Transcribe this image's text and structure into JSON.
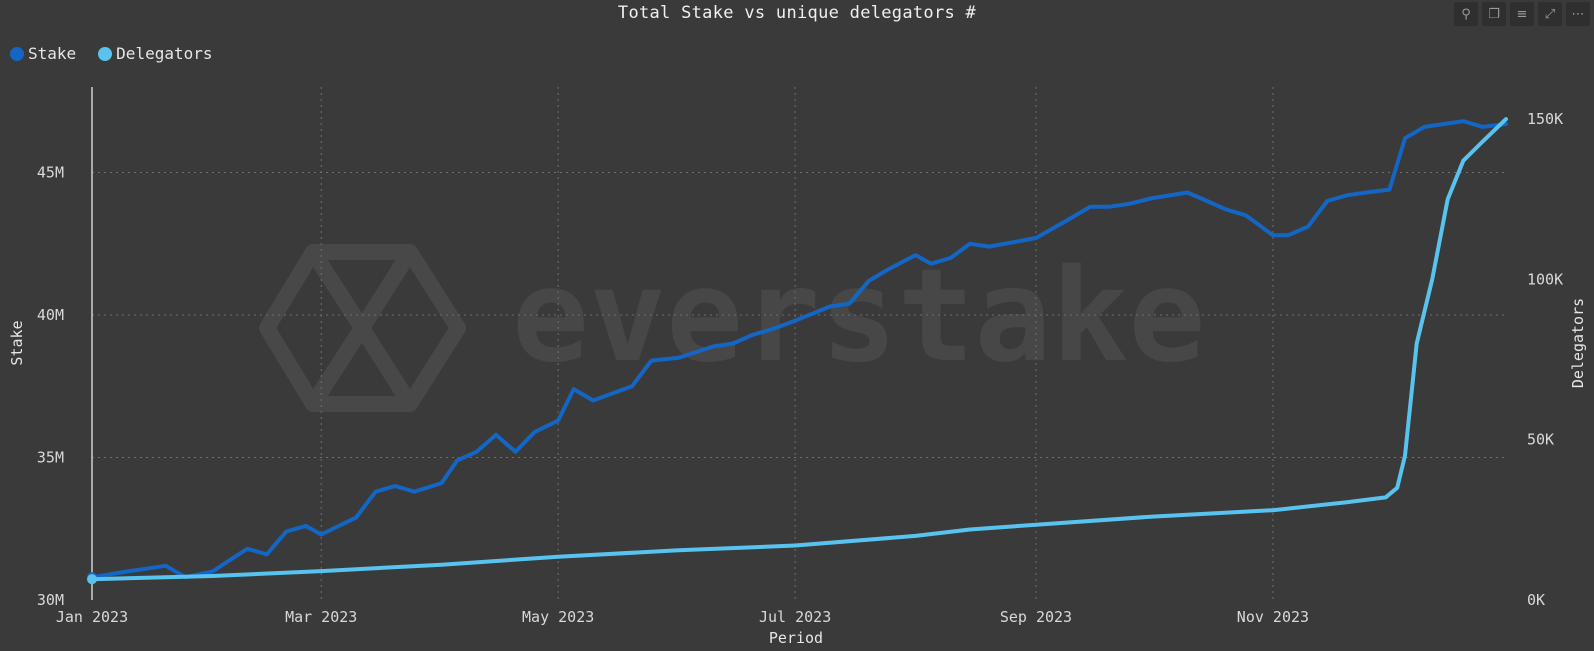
{
  "chart_data": {
    "type": "line",
    "title": "Total Stake vs unique delegators #",
    "xlabel": "Period",
    "ylabel_left": "Stake",
    "ylabel_right": "Delegators",
    "x_ticks": [
      "Jan 2023",
      "Mar 2023",
      "May 2023",
      "Jul 2023",
      "Sep 2023",
      "Nov 2023"
    ],
    "x_tick_dates": [
      "2023-01-01",
      "2023-03-01",
      "2023-05-01",
      "2023-07-01",
      "2023-09-01",
      "2023-11-01"
    ],
    "y_left_ticks": [
      "30M",
      "35M",
      "40M",
      "45M"
    ],
    "y_left_tick_values": [
      30000000,
      35000000,
      40000000,
      45000000
    ],
    "y_right_ticks": [
      "0K",
      "50K",
      "100K",
      "150K"
    ],
    "y_right_tick_values": [
      0,
      50000,
      100000,
      150000
    ],
    "y_left_range": [
      30000000,
      48000000
    ],
    "y_right_range": [
      0,
      160000
    ],
    "x_range": [
      "2023-01-01",
      "2023-12-31"
    ],
    "grid": true,
    "legend_position": "top-left",
    "series": [
      {
        "name": "Stake",
        "axis": "left",
        "color": "#1466c4",
        "x": [
          "2023-01-01",
          "2023-01-10",
          "2023-01-20",
          "2023-01-25",
          "2023-02-01",
          "2023-02-10",
          "2023-02-15",
          "2023-02-20",
          "2023-02-25",
          "2023-03-01",
          "2023-03-10",
          "2023-03-15",
          "2023-03-20",
          "2023-03-25",
          "2023-04-01",
          "2023-04-05",
          "2023-04-10",
          "2023-04-15",
          "2023-04-20",
          "2023-04-25",
          "2023-05-01",
          "2023-05-05",
          "2023-05-10",
          "2023-05-20",
          "2023-05-25",
          "2023-06-01",
          "2023-06-10",
          "2023-06-15",
          "2023-06-20",
          "2023-06-25",
          "2023-07-01",
          "2023-07-10",
          "2023-07-15",
          "2023-07-20",
          "2023-07-25",
          "2023-08-01",
          "2023-08-05",
          "2023-08-10",
          "2023-08-15",
          "2023-08-20",
          "2023-09-01",
          "2023-09-10",
          "2023-09-15",
          "2023-09-20",
          "2023-09-25",
          "2023-10-01",
          "2023-10-10",
          "2023-10-15",
          "2023-10-20",
          "2023-10-25",
          "2023-11-01",
          "2023-11-05",
          "2023-11-10",
          "2023-11-15",
          "2023-11-20",
          "2023-11-25",
          "2023-12-01",
          "2023-12-05",
          "2023-12-10",
          "2023-12-15",
          "2023-12-20",
          "2023-12-25",
          "2023-12-31"
        ],
        "values": [
          30800000,
          31000000,
          31200000,
          30800000,
          31000000,
          31800000,
          31600000,
          32400000,
          32600000,
          32300000,
          32900000,
          33800000,
          34000000,
          33800000,
          34100000,
          34900000,
          35200000,
          35800000,
          35200000,
          35900000,
          36300000,
          37400000,
          37000000,
          37500000,
          38400000,
          38500000,
          38900000,
          39000000,
          39300000,
          39500000,
          39800000,
          40300000,
          40400000,
          41200000,
          41600000,
          42100000,
          41800000,
          42000000,
          42500000,
          42400000,
          42700000,
          43400000,
          43800000,
          43800000,
          43900000,
          44100000,
          44300000,
          44000000,
          43700000,
          43500000,
          42800000,
          42800000,
          43100000,
          44000000,
          44200000,
          44300000,
          44400000,
          46200000,
          46600000,
          46700000,
          46800000,
          46600000,
          46700000
        ]
      },
      {
        "name": "Delegators",
        "axis": "right",
        "color": "#59c3f0",
        "x": [
          "2023-01-01",
          "2023-02-01",
          "2023-03-01",
          "2023-04-01",
          "2023-05-01",
          "2023-06-01",
          "2023-07-01",
          "2023-08-01",
          "2023-08-15",
          "2023-09-01",
          "2023-10-01",
          "2023-11-01",
          "2023-11-20",
          "2023-11-30",
          "2023-12-03",
          "2023-12-05",
          "2023-12-08",
          "2023-12-12",
          "2023-12-16",
          "2023-12-20",
          "2023-12-25",
          "2023-12-31"
        ],
        "values": [
          6500,
          7500,
          9000,
          11000,
          13500,
          15500,
          17000,
          20000,
          22000,
          23500,
          26000,
          28000,
          30500,
          32000,
          35000,
          45000,
          80000,
          100000,
          125000,
          137000,
          143000,
          150000
        ]
      }
    ]
  },
  "legend": [
    {
      "label": "Stake",
      "color": "#1466c4"
    },
    {
      "label": "Delegators",
      "color": "#59c3f0"
    }
  ],
  "watermark": {
    "text": "everstake"
  },
  "toolbar": [
    {
      "name": "pin-icon",
      "glyph": "⚲"
    },
    {
      "name": "copy-icon",
      "glyph": "❐"
    },
    {
      "name": "filter-icon",
      "glyph": "≡"
    },
    {
      "name": "focus-mode-icon",
      "glyph": "⤢"
    },
    {
      "name": "more-options-icon",
      "glyph": "⋯"
    }
  ]
}
